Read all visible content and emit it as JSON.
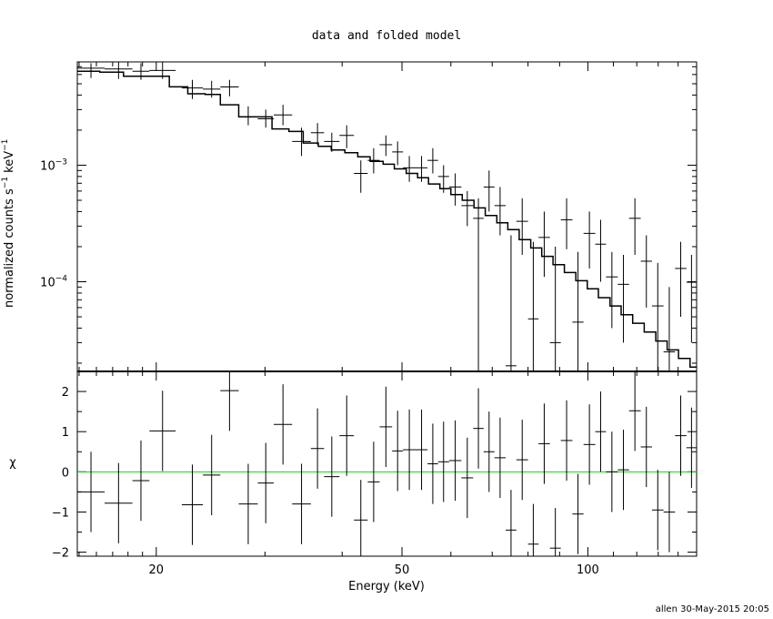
{
  "chart_data": {
    "title": "data and folded model",
    "footer": "allen 30-May-2015 20:05",
    "xlabel": "Energy (keV)",
    "x_scale": "log",
    "xlim": [
      14.9,
      150
    ],
    "x_ticks": [
      {
        "value": 20,
        "label": "20"
      },
      {
        "value": 50,
        "label": "50"
      },
      {
        "value": 100,
        "label": "100"
      }
    ],
    "top_panel": {
      "type": "scatter",
      "ylabel": "normalized counts s",
      "ylabel_sup1": "−1",
      "ylabel_mid": " keV",
      "ylabel_sup2": "−1",
      "y_scale": "log",
      "ylim": [
        1.7e-05,
        0.0077
      ],
      "y_ticks": [
        {
          "value": 0.001,
          "base": "10",
          "exp": "−3"
        },
        {
          "value": 0.0001,
          "base": "10",
          "exp": "−4"
        }
      ],
      "series": [
        {
          "type": "step",
          "bins": [
            [
              14.9,
              16.2,
              0.0064
            ],
            [
              16.2,
              17.7,
              0.0063
            ],
            [
              17.7,
              19.3,
              0.0058
            ],
            [
              19.3,
              21.0,
              0.0058
            ],
            [
              21.0,
              22.5,
              0.0047
            ],
            [
              22.5,
              24.0,
              0.0041
            ],
            [
              24.0,
              25.4,
              0.00405
            ],
            [
              25.4,
              27.2,
              0.0033
            ],
            [
              27.2,
              29.0,
              0.0026
            ],
            [
              29.0,
              30.8,
              0.0026
            ],
            [
              30.8,
              32.8,
              0.00205
            ],
            [
              32.8,
              34.6,
              0.00195
            ],
            [
              34.6,
              36.6,
              0.00155
            ],
            [
              36.6,
              38.4,
              0.00145
            ],
            [
              38.4,
              40.4,
              0.00135
            ],
            [
              40.4,
              42.4,
              0.00128
            ],
            [
              42.4,
              44.4,
              0.00118
            ],
            [
              44.4,
              46.6,
              0.00108
            ],
            [
              46.6,
              48.6,
              0.00102
            ],
            [
              48.6,
              50.8,
              0.00093
            ],
            [
              50.8,
              53.0,
              0.00085
            ],
            [
              53.0,
              55.2,
              0.00078
            ],
            [
              55.2,
              57.6,
              0.00069
            ],
            [
              57.6,
              60.0,
              0.00063
            ],
            [
              60.0,
              62.6,
              0.00056
            ],
            [
              62.6,
              65.4,
              0.0005
            ],
            [
              65.4,
              68.2,
              0.00043
            ],
            [
              68.2,
              71.2,
              0.00037
            ],
            [
              71.2,
              74.2,
              0.00032
            ],
            [
              74.2,
              77.4,
              0.00028
            ],
            [
              77.4,
              80.8,
              0.00023
            ],
            [
              80.8,
              84.2,
              0.000195
            ],
            [
              84.2,
              87.8,
              0.000165
            ],
            [
              87.8,
              91.6,
              0.00014
            ],
            [
              91.6,
              95.6,
              0.00012
            ],
            [
              95.6,
              99.8,
              0.000102
            ],
            [
              99.8,
              104.0,
              8.7e-05
            ],
            [
              104.0,
              108.6,
              7.3e-05
            ],
            [
              108.6,
              113.2,
              6.2e-05
            ],
            [
              113.2,
              118.2,
              5.2e-05
            ],
            [
              118.2,
              123.4,
              4.4e-05
            ],
            [
              123.4,
              128.8,
              3.7e-05
            ],
            [
              128.8,
              134.4,
              3.1e-05
            ],
            [
              134.4,
              140.2,
              2.6e-05
            ],
            [
              140.2,
              146.4,
              2.2e-05
            ],
            [
              146.4,
              150.0,
              1.85e-05
            ]
          ]
        },
        {
          "type": "errorbar",
          "points": [
            [
              14.9,
              16.5,
              0.0068,
              0.0056,
              0.0075
            ],
            [
              16.5,
              18.3,
              0.0067,
              0.0055,
              0.0077
            ],
            [
              18.3,
              19.5,
              0.0064,
              0.0054,
              0.0075
            ],
            [
              19.5,
              21.5,
              0.0065,
              0.0055,
              0.0077
            ],
            [
              22.0,
              23.8,
              0.0046,
              0.0037,
              0.0054
            ],
            [
              23.8,
              25.4,
              0.0045,
              0.0038,
              0.0053
            ],
            [
              25.4,
              27.2,
              0.0047,
              0.0039,
              0.0054
            ],
            [
              27.2,
              29.2,
              0.0026,
              0.0022,
              0.0032
            ],
            [
              29.2,
              31.0,
              0.0025,
              0.0021,
              0.003
            ],
            [
              31.0,
              33.2,
              0.0027,
              0.0022,
              0.0033
            ],
            [
              33.2,
              35.6,
              0.0016,
              0.0012,
              0.0021
            ],
            [
              35.6,
              37.4,
              0.0019,
              0.0015,
              0.0023
            ],
            [
              37.4,
              39.6,
              0.0016,
              0.0013,
              0.0019
            ],
            [
              39.6,
              41.8,
              0.0018,
              0.0014,
              0.0022
            ],
            [
              41.8,
              44.0,
              0.00085,
              0.00058,
              0.0011
            ],
            [
              44.0,
              46.0,
              0.0011,
              0.00085,
              0.0014
            ],
            [
              46.0,
              48.2,
              0.0015,
              0.0012,
              0.0018
            ],
            [
              48.2,
              50.2,
              0.0013,
              0.001,
              0.0016
            ],
            [
              50.2,
              52.6,
              0.00095,
              0.00072,
              0.0012
            ],
            [
              52.6,
              55.0,
              0.00095,
              0.00072,
              0.0012
            ],
            [
              55.0,
              57.2,
              0.0011,
              0.00085,
              0.0014
            ],
            [
              57.2,
              59.6,
              0.0008,
              0.00058,
              0.001
            ],
            [
              59.6,
              62.4,
              0.00065,
              0.00045,
              0.00085
            ],
            [
              62.4,
              65.2,
              0.00045,
              0.0003,
              0.0006
            ],
            [
              65.2,
              67.8,
              0.00035,
              1e-07,
              0.00052
            ],
            [
              67.8,
              70.6,
              0.00065,
              0.0004,
              0.0009
            ],
            [
              70.6,
              73.6,
              0.00045,
              0.00025,
              0.00065
            ],
            [
              73.6,
              76.6,
              1.9e-05,
              1e-07,
              0.00025
            ],
            [
              76.6,
              80.0,
              0.00033,
              0.00017,
              0.00052
            ],
            [
              80.0,
              83.2,
              4.8e-05,
              1e-07,
              0.00022
            ],
            [
              83.2,
              86.8,
              0.00024,
              0.00011,
              0.0004
            ],
            [
              86.8,
              90.4,
              3e-05,
              1e-07,
              0.0002
            ],
            [
              90.4,
              94.4,
              0.00034,
              0.00019,
              0.00052
            ],
            [
              94.4,
              98.4,
              4.5e-05,
              1e-07,
              0.00018
            ],
            [
              98.4,
              102.8,
              0.00026,
              0.00013,
              0.0004
            ],
            [
              102.8,
              107.0,
              0.00021,
              0.0001,
              0.00034
            ],
            [
              107.0,
              111.8,
              0.00011,
              4e-05,
              0.00018
            ],
            [
              111.8,
              116.6,
              9.5e-05,
              3e-05,
              0.00017
            ],
            [
              116.6,
              121.8,
              0.00035,
              0.00017,
              0.00052
            ],
            [
              121.8,
              127.0,
              0.00015,
              6e-05,
              0.00025
            ],
            [
              127.0,
              132.6,
              6.2e-05,
              1e-07,
              0.000145
            ],
            [
              132.6,
              138.4,
              2.5e-05,
              1e-07,
              9e-05
            ],
            [
              138.4,
              144.4,
              0.00013,
              5e-05,
              0.00022
            ],
            [
              144.4,
              150.0,
              9.9e-05,
              3e-05,
              0.00017
            ]
          ]
        }
      ]
    },
    "bottom_panel": {
      "type": "scatter",
      "ylabel": "χ",
      "y_scale": "linear",
      "ylim": [
        -2.1,
        2.5
      ],
      "y_ticks": [
        {
          "value": 2,
          "label": "2"
        },
        {
          "value": 1,
          "label": "1"
        },
        {
          "value": 0,
          "label": "0"
        },
        {
          "value": -1,
          "label": "−1"
        },
        {
          "value": -2,
          "label": "−2"
        }
      ],
      "zero_line": {
        "value": 0,
        "color": "#00dd00"
      },
      "points": [
        [
          14.9,
          16.5,
          -0.5,
          -1.5,
          0.5
        ],
        [
          16.5,
          18.3,
          -0.78,
          -1.78,
          0.22
        ],
        [
          18.3,
          19.5,
          -0.22,
          -1.22,
          0.78
        ],
        [
          19.5,
          21.5,
          1.02,
          0.02,
          2.02
        ],
        [
          22.0,
          23.8,
          -0.82,
          -1.82,
          0.18
        ],
        [
          23.8,
          25.4,
          -0.08,
          -1.08,
          0.92
        ],
        [
          25.4,
          27.2,
          2.02,
          1.02,
          3.02
        ],
        [
          27.2,
          29.2,
          -0.8,
          -1.8,
          0.2
        ],
        [
          29.2,
          31.0,
          -0.28,
          -1.28,
          0.72
        ],
        [
          31.0,
          33.2,
          1.18,
          0.18,
          2.18
        ],
        [
          33.2,
          35.6,
          -0.8,
          -1.8,
          0.2
        ],
        [
          35.6,
          37.4,
          0.58,
          -0.42,
          1.58
        ],
        [
          37.4,
          39.6,
          -0.12,
          -1.12,
          0.88
        ],
        [
          39.6,
          41.8,
          0.9,
          -0.1,
          1.9
        ],
        [
          41.8,
          44.0,
          -1.2,
          -2.2,
          -0.2
        ],
        [
          44.0,
          46.0,
          -0.25,
          -1.25,
          0.75
        ],
        [
          46.0,
          48.2,
          1.12,
          0.12,
          2.12
        ],
        [
          48.2,
          50.2,
          0.52,
          -0.48,
          1.52
        ],
        [
          50.2,
          52.6,
          0.55,
          -0.45,
          1.55
        ],
        [
          52.6,
          55.0,
          0.55,
          -0.45,
          1.55
        ],
        [
          55.0,
          57.2,
          0.2,
          -0.8,
          1.2
        ],
        [
          57.2,
          59.6,
          0.25,
          -0.75,
          1.25
        ],
        [
          59.6,
          62.4,
          0.28,
          -0.72,
          1.28
        ],
        [
          62.4,
          65.2,
          -0.15,
          -1.15,
          0.85
        ],
        [
          65.2,
          67.8,
          1.08,
          0.08,
          2.08
        ],
        [
          67.8,
          70.6,
          0.5,
          -0.5,
          1.5
        ],
        [
          70.6,
          73.6,
          0.35,
          -0.65,
          1.35
        ],
        [
          73.6,
          76.6,
          -1.45,
          -2.45,
          -0.45
        ],
        [
          76.6,
          80.0,
          0.3,
          -0.7,
          1.3
        ],
        [
          80.0,
          83.2,
          -1.8,
          -2.8,
          -0.8
        ],
        [
          83.2,
          86.8,
          0.7,
          -0.3,
          1.7
        ],
        [
          86.8,
          90.4,
          -1.9,
          -2.9,
          -0.9
        ],
        [
          90.4,
          94.4,
          0.78,
          -0.22,
          1.78
        ],
        [
          94.4,
          98.4,
          -1.05,
          -2.05,
          -0.05
        ],
        [
          98.4,
          102.8,
          0.68,
          -0.32,
          1.68
        ],
        [
          102.8,
          107.0,
          1.0,
          0.0,
          2.0
        ],
        [
          107.0,
          111.8,
          0.0,
          -1.0,
          1.0
        ],
        [
          111.8,
          116.6,
          0.05,
          -0.95,
          1.05
        ],
        [
          116.6,
          121.8,
          1.52,
          0.52,
          2.52
        ],
        [
          121.8,
          127.0,
          0.62,
          -0.38,
          1.62
        ],
        [
          127.0,
          132.6,
          -0.95,
          -1.95,
          0.05
        ],
        [
          132.6,
          138.4,
          -1.0,
          -2.0,
          0.0
        ],
        [
          138.4,
          144.4,
          0.9,
          -0.1,
          1.9
        ],
        [
          144.4,
          150.0,
          0.6,
          -0.4,
          1.6
        ]
      ]
    }
  }
}
